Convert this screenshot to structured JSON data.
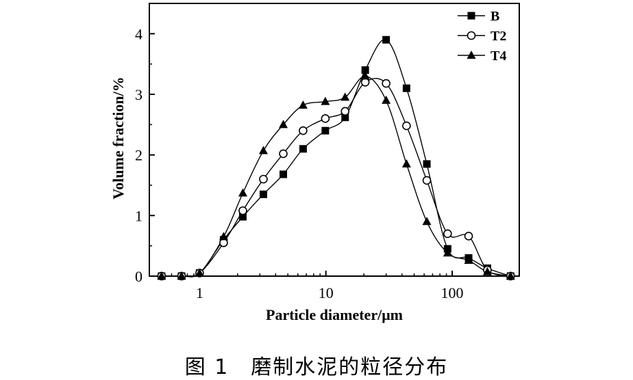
{
  "chart_data": {
    "type": "line",
    "xscale": "log",
    "xlabel": "Particle diameter/μm",
    "ylabel": "Volume fraction/%",
    "xlim": [
      0.4,
      340
    ],
    "ylim": [
      0,
      4.5
    ],
    "xticks": [
      1,
      10,
      100
    ],
    "xtick_labels": [
      "1",
      "10",
      "100"
    ],
    "yticks": [
      0,
      1,
      2,
      3,
      4
    ],
    "ytick_labels": [
      "0",
      "1",
      "2",
      "3",
      "4"
    ],
    "legend_position": "top-right",
    "grid": false,
    "series": [
      {
        "name": "B",
        "marker": "filled-square",
        "x": [
          0.5,
          0.72,
          1.0,
          1.55,
          2.2,
          3.2,
          4.6,
          6.6,
          9.9,
          14.2,
          20.5,
          30,
          43.5,
          63,
          92,
          135,
          190,
          290
        ],
        "y": [
          0,
          0,
          0.05,
          0.6,
          0.98,
          1.35,
          1.68,
          2.1,
          2.4,
          2.62,
          3.4,
          3.9,
          3.1,
          1.85,
          0.45,
          0.3,
          0.13,
          0
        ]
      },
      {
        "name": "T2",
        "marker": "open-circle",
        "x": [
          0.5,
          0.72,
          1.0,
          1.55,
          2.2,
          3.2,
          4.6,
          6.6,
          9.9,
          14.2,
          20.5,
          30,
          43.5,
          63,
          92,
          135,
          190,
          290
        ],
        "y": [
          0,
          0,
          0.05,
          0.55,
          1.08,
          1.6,
          2.02,
          2.4,
          2.6,
          2.72,
          3.2,
          3.18,
          2.48,
          1.58,
          0.7,
          0.66,
          0.1,
          0
        ]
      },
      {
        "name": "T4",
        "marker": "filled-triangle",
        "x": [
          0.5,
          0.72,
          1.0,
          1.55,
          2.2,
          3.2,
          4.6,
          6.6,
          9.9,
          14.2,
          20.5,
          30,
          43.5,
          63,
          92,
          135,
          190,
          290
        ],
        "y": [
          0,
          0,
          0.05,
          0.65,
          1.37,
          2.07,
          2.5,
          2.82,
          2.88,
          2.95,
          3.3,
          2.9,
          1.85,
          0.9,
          0.38,
          0.26,
          0.07,
          0
        ]
      }
    ]
  },
  "caption": "图 1　磨制水泥的粒径分布",
  "colors": {
    "ink": "#000000",
    "background": "#ffffff"
  }
}
